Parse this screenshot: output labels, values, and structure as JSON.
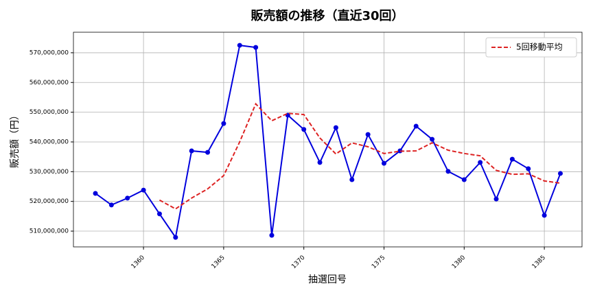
{
  "chart_data": {
    "type": "line",
    "title": "販売額の推移（直近30回）",
    "x_label": "抽選回号",
    "y_label": "販売額（円）",
    "x": [
      1357,
      1358,
      1359,
      1360,
      1361,
      1362,
      1363,
      1364,
      1365,
      1366,
      1367,
      1368,
      1369,
      1370,
      1371,
      1372,
      1373,
      1374,
      1375,
      1376,
      1377,
      1378,
      1379,
      1380,
      1381,
      1382,
      1383,
      1384,
      1385,
      1386
    ],
    "series": [
      {
        "color": "#0000dd",
        "style": "solid",
        "markers": true,
        "values": [
          522700000,
          518800000,
          521100000,
          523800000,
          515800000,
          507900000,
          537000000,
          536500000,
          546200000,
          572500000,
          571800000,
          508600000,
          549000000,
          544200000,
          533100000,
          544800000,
          527300000,
          542500000,
          532800000,
          537000000,
          545300000,
          540900000,
          530100000,
          527300000,
          533100000,
          520800000,
          534200000,
          531000000,
          515300000,
          529400000
        ]
      },
      {
        "name": "5回移動平均",
        "color": "#dd2222",
        "style": "dashed",
        "markers": false,
        "values": [
          null,
          null,
          null,
          null,
          520440000,
          517480000,
          521120000,
          524200000,
          528680000,
          540020000,
          552800000,
          547120000,
          549620000,
          549220000,
          541340000,
          535940000,
          539680000,
          538380000,
          536100000,
          536880000,
          536980000,
          539700000,
          537220000,
          536120000,
          535340000,
          530440000,
          529100000,
          529280000,
          526880000,
          526140000
        ]
      }
    ],
    "xlim": [
      1355.63,
      1387.35
    ],
    "xticks": [
      1360,
      1365,
      1370,
      1375,
      1380,
      1385
    ],
    "ylim": [
      504700000,
      576900000
    ],
    "yticks": [
      {
        "value": 510000000,
        "label": "510,000,000"
      },
      {
        "value": 520000000,
        "label": "520,000,000"
      },
      {
        "value": 530000000,
        "label": "530,000,000"
      },
      {
        "value": 540000000,
        "label": "540,000,000"
      },
      {
        "value": 550000000,
        "label": "550,000,000"
      },
      {
        "value": 560000000,
        "label": "560,000,000"
      },
      {
        "value": 570000000,
        "label": "570,000,000"
      }
    ],
    "grid": true,
    "legend": "upper right"
  }
}
